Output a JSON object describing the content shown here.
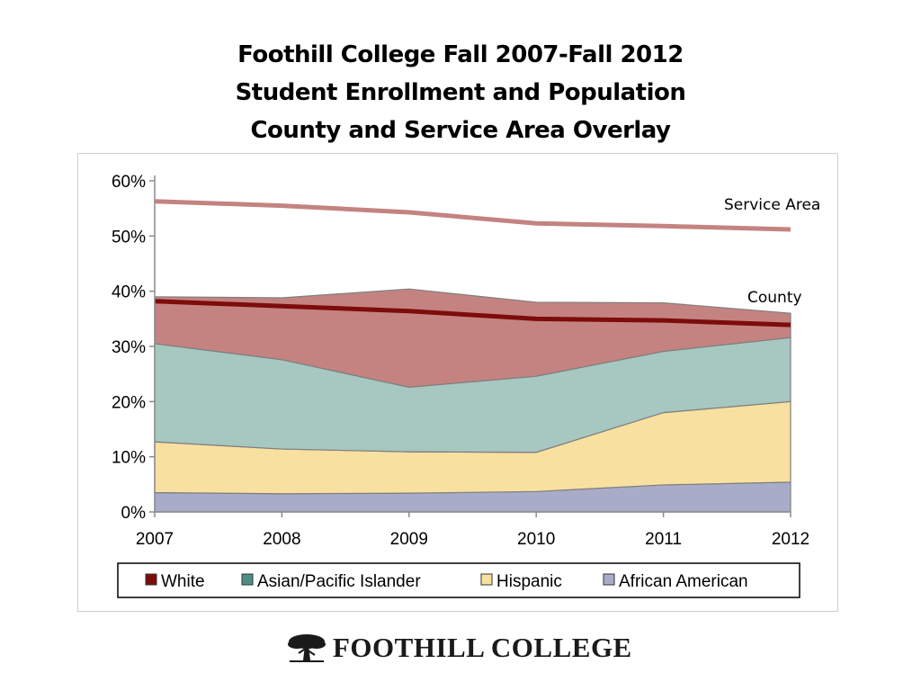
{
  "title_lines": [
    "Foothill College Fall 2007-Fall 2012",
    "Student Enrollment and Population",
    "County and Service Area Overlay"
  ],
  "chart_data": {
    "type": "area",
    "stacked": true,
    "x": [
      "2007",
      "2008",
      "2009",
      "2010",
      "2011",
      "2012"
    ],
    "ylim": [
      0,
      60
    ],
    "yticks": [
      "0%",
      "10%",
      "20%",
      "30%",
      "40%",
      "50%",
      "60%"
    ],
    "series": [
      {
        "name": "African American",
        "values": [
          3.5,
          3.3,
          3.4,
          3.7,
          4.9,
          5.4
        ],
        "color": "#a9acc9"
      },
      {
        "name": "Hispanic",
        "values": [
          9.2,
          8.1,
          7.5,
          7.1,
          13.1,
          14.6
        ],
        "color": "#f8e0a0"
      },
      {
        "name": "Asian/Pacific Islander",
        "values": [
          17.8,
          16.2,
          11.7,
          13.8,
          11.1,
          11.6
        ],
        "color": "#a7c7c1"
      },
      {
        "name": "White",
        "values": [
          8.5,
          11.2,
          17.8,
          13.4,
          8.8,
          4.4
        ],
        "color": "#c48381"
      }
    ],
    "overlay_lines": [
      {
        "name": "Service Area",
        "values": [
          56.3,
          55.5,
          54.3,
          52.3,
          51.8,
          51.2
        ],
        "color": "#c48381"
      },
      {
        "name": "County",
        "values": [
          38.2,
          37.3,
          36.4,
          35.0,
          34.7,
          33.9
        ],
        "color": "#7d0c0c"
      }
    ],
    "legend": [
      {
        "label": "White",
        "color": "#7d0c0c"
      },
      {
        "label": "Asian/Pacific Islander",
        "color": "#4f8f86"
      },
      {
        "label": "Hispanic",
        "color": "#f8e0a0"
      },
      {
        "label": "African American",
        "color": "#a9acc9"
      }
    ],
    "legend_position": "bottom",
    "grid": false
  },
  "logo": {
    "text": "FOOTHILL COLLEGE",
    "icon": "oak-tree-icon"
  }
}
